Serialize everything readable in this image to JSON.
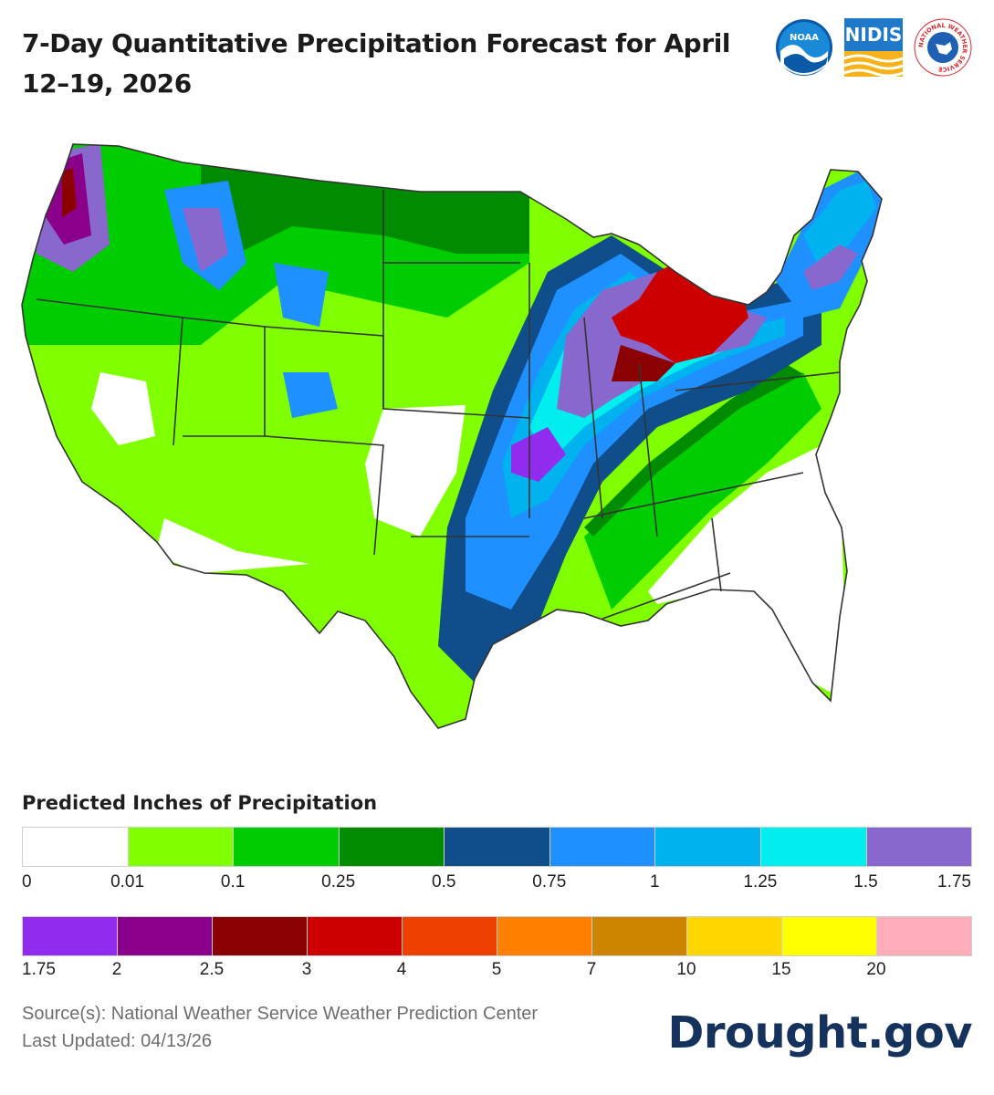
{
  "title": "7-Day Quantitative Precipitation Forecast for April 12–19, 2026",
  "logos": {
    "noaa": "NOAA",
    "nidis": "NIDIS",
    "nws": "NATIONAL WEATHER SERVICE"
  },
  "map": {
    "region": "Contiguous United States",
    "colors": {
      "none": "#ffffff",
      "lightgreen": "#7fff00",
      "green": "#00cd00",
      "darkgreen": "#008b00",
      "navy": "#104e8b",
      "blue": "#1e90ff",
      "skyblue": "#00b2ee",
      "cyan": "#00eeee",
      "lavender": "#8968cd",
      "purple": "#912cee",
      "darkpurple": "#8b008b",
      "maroon": "#8b0000",
      "red": "#cd0000"
    }
  },
  "legend": {
    "title": "Predicted Inches of Precipitation",
    "row1_colors": [
      "#ffffff",
      "#7fff00",
      "#00cd00",
      "#008b00",
      "#104e8b",
      "#1e90ff",
      "#00b2ee",
      "#00eeee",
      "#8968cd"
    ],
    "row1_labels": [
      "0",
      "0.01",
      "0.1",
      "0.25",
      "0.5",
      "0.75",
      "1",
      "1.25",
      "1.5",
      "1.75"
    ],
    "row2_colors": [
      "#912cee",
      "#8b008b",
      "#8b0000",
      "#cd0000",
      "#ee4000",
      "#ff7f00",
      "#cd8500",
      "#ffd700",
      "#ffff00",
      "#ffaeb9"
    ],
    "row2_labels": [
      "1.75",
      "2",
      "2.5",
      "3",
      "4",
      "5",
      "7",
      "10",
      "15",
      "20"
    ]
  },
  "footer": {
    "source": "Source(s): National Weather Service Weather Prediction Center",
    "updated": "Last Updated: 04/13/26",
    "brand": "Drought.gov"
  }
}
